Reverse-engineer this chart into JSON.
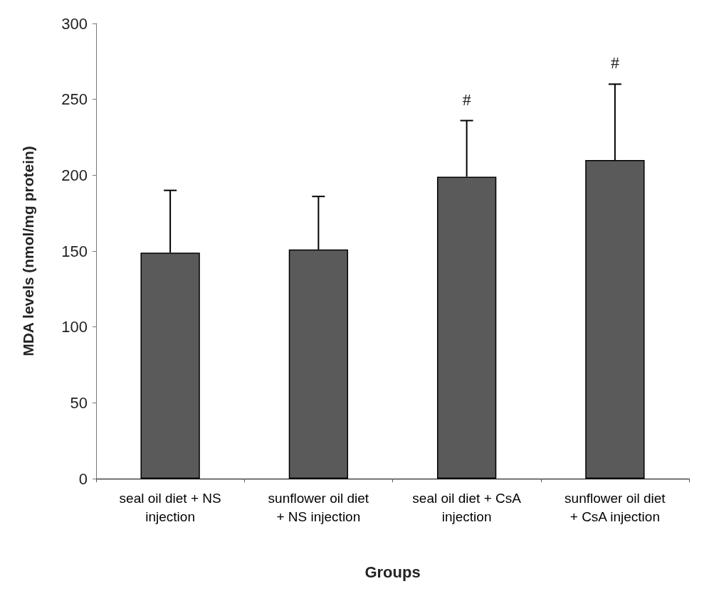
{
  "chart_data": {
    "type": "bar",
    "xlabel": "Groups",
    "ylabel": "MDA levels (nmol/mg protein)",
    "categories": [
      "seal oil diet + NS\ninjection",
      "sunflower oil diet\n+ NS injection",
      "seal oil diet + CsA\ninjection",
      "sunflower oil diet\n+ CsA injection"
    ],
    "values": [
      149,
      151,
      199,
      210
    ],
    "errors": [
      [
        149,
        190
      ],
      [
        151,
        186
      ],
      [
        199,
        236
      ],
      [
        210,
        260
      ]
    ],
    "color": "#5a5a5a",
    "ylim": [
      0,
      300
    ],
    "yticks": [
      0,
      50,
      100,
      150,
      200,
      250,
      300
    ],
    "grid": false,
    "annotations": [
      {
        "text": "#",
        "x": "seal oil diet + CsA\ninjection",
        "y": 236
      },
      {
        "text": "#",
        "x": "sunflower oil diet\n+ CsA injection",
        "y": 260
      }
    ]
  }
}
